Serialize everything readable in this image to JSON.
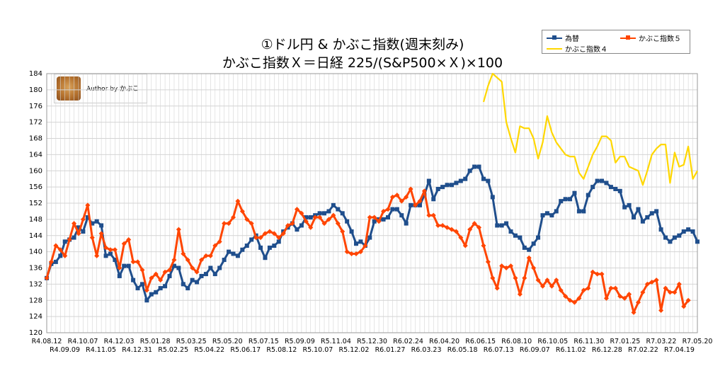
{
  "title_line1": "①ドル円 & かぶこ指数(週末刻み)",
  "title_line2": "かぶこ指数Ｘ＝日経 225/(S&P500×Ｘ)×100",
  "author_label": "Author by かぶこ",
  "colors": {
    "fx": "#1f4e8c",
    "k5": "#ff4500",
    "k4": "#ffd700",
    "grid": "#d4d4d4"
  },
  "chart_data": {
    "type": "line",
    "title": "①ドル円 & かぶこ指数(週末刻み) かぶこ指数Ｘ＝日経 225/(S&P500×Ｘ)×100",
    "ylim": [
      120,
      184
    ],
    "y_ticks": [
      120,
      124,
      128,
      132,
      136,
      140,
      144,
      148,
      152,
      156,
      160,
      164,
      168,
      172,
      176,
      180,
      184
    ],
    "grid": true,
    "legend_position": "top-right",
    "x_labels_top": [
      "R4.08.12",
      "R4.10.07",
      "R4.12.03",
      "R5.01.28",
      "R5.03.25",
      "R5.05.20",
      "R5.07.15",
      "R5.09.09",
      "R5.11.04",
      "R5.12.30",
      "R6.02.24",
      "R6.04.20",
      "R6.06.15",
      "R6.08.10",
      "R6.10.05",
      "R6.11.30",
      "R7.01.25",
      "R7.03.22",
      "R7.05.20"
    ],
    "x_labels_bottom": [
      "R4.09.09",
      "R4.11.05",
      "R4.12.31",
      "R5.02.25",
      "R5.04.22",
      "R5.06.17",
      "R5.08.12",
      "R5.10.07",
      "R5.12.02",
      "R6.01.27",
      "R6.03.23",
      "R6.05.18",
      "R6.07.13",
      "R6.09.07",
      "R6.11.02",
      "R6.12.28",
      "R7.02.22",
      "R7.04.19"
    ],
    "series": [
      {
        "name": "為替",
        "values": [
          133.5,
          137.0,
          137.5,
          139.0,
          142.5,
          143.0,
          143.5,
          146.0,
          145.0,
          148.5,
          147.0,
          147.5,
          146.5,
          139.0,
          139.5,
          138.0,
          134.0,
          136.5,
          136.5,
          133.0,
          131.0,
          132.0,
          128.0,
          129.5,
          130.0,
          131.0,
          131.5,
          134.0,
          136.5,
          136.0,
          132.0,
          131.0,
          133.0,
          132.5,
          134.0,
          134.5,
          136.0,
          134.5,
          136.0,
          138.0,
          140.0,
          139.5,
          139.0,
          140.5,
          141.5,
          143.0,
          144.0,
          141.0,
          138.5,
          141.0,
          141.5,
          142.5,
          145.0,
          146.0,
          147.0,
          145.5,
          146.5,
          148.5,
          148.5,
          149.0,
          149.5,
          149.5,
          150.0,
          151.5,
          150.5,
          149.5,
          147.5,
          145.0,
          142.0,
          142.5,
          141.5,
          143.5,
          147.5,
          148.0,
          148.0,
          148.5,
          150.5,
          150.5,
          149.0,
          147.0,
          151.5,
          151.5,
          151.5,
          154.0,
          157.5,
          153.0,
          155.5,
          156.0,
          156.5,
          156.5,
          157.0,
          157.5,
          158.0,
          160.0,
          161.0,
          161.0,
          158.0,
          157.5,
          153.5,
          146.5,
          146.5,
          147.0,
          145.0,
          144.0,
          143.5,
          141.0,
          140.5,
          142.0,
          143.5,
          149.0,
          149.5,
          149.0,
          150.0,
          152.5,
          153.0,
          153.0,
          154.5,
          150.0,
          150.0,
          154.0,
          156.0,
          157.5,
          157.5,
          157.0,
          156.0,
          155.5,
          155.0,
          151.0,
          151.5,
          148.5,
          150.5,
          147.5,
          148.5,
          149.5,
          150.0,
          145.5,
          143.5,
          142.5,
          143.5,
          144.0,
          145.0,
          145.5,
          145.0,
          142.5
        ]
      },
      {
        "name": "かぶこ指数５",
        "values": [
          133.5,
          137.5,
          141.5,
          140.5,
          139.0,
          143.0,
          147.0,
          144.5,
          148.0,
          151.5,
          143.5,
          139.0,
          144.5,
          141.0,
          140.5,
          140.5,
          136.0,
          142.0,
          143.0,
          137.5,
          137.5,
          135.5,
          130.5,
          133.5,
          134.5,
          133.0,
          135.0,
          135.5,
          138.0,
          145.5,
          139.5,
          138.0,
          136.0,
          135.0,
          138.0,
          139.0,
          139.0,
          141.5,
          142.5,
          147.0,
          147.0,
          148.5,
          152.5,
          150.0,
          148.0,
          147.0,
          143.5,
          143.5,
          144.5,
          145.0,
          144.5,
          143.5,
          144.5,
          146.5,
          147.0,
          150.5,
          149.5,
          147.5,
          146.0,
          148.5,
          148.5,
          147.0,
          148.0,
          149.0,
          147.0,
          145.0,
          140.0,
          139.5,
          139.5,
          140.0,
          141.5,
          148.5,
          148.5,
          147.5,
          150.0,
          150.5,
          153.5,
          154.0,
          152.5,
          153.5,
          155.5,
          151.5,
          152.5,
          155.0,
          149.0,
          149.0,
          146.5,
          146.5,
          146.0,
          145.5,
          145.0,
          143.5,
          141.5,
          145.5,
          147.0,
          146.0,
          141.5,
          137.5,
          133.5,
          131.0,
          136.5,
          136.0,
          136.5,
          133.5,
          129.5,
          133.5,
          138.5,
          136.0,
          133.0,
          131.5,
          133.0,
          131.5,
          133.0,
          130.5,
          129.0,
          128.0,
          127.5,
          128.5,
          130.5,
          131.0,
          135.0,
          134.5,
          134.5,
          128.5,
          131.0,
          131.0,
          129.0,
          128.5,
          129.5,
          125.0,
          127.5,
          130.0,
          132.0,
          132.5,
          133.0,
          125.5,
          131.0,
          130.0,
          130.0,
          132.0,
          126.5,
          128.0
        ]
      },
      {
        "name": "かぶこ指数４",
        "values": [
          177.0,
          181.0,
          184.0,
          183.0,
          182.0,
          172.0,
          168.0,
          164.5,
          171.0,
          170.5,
          170.5,
          168.0,
          163.0,
          167.0,
          173.5,
          169.5,
          167.0,
          165.5,
          164.0,
          163.5,
          163.5,
          159.5,
          158.0,
          161.0,
          164.0,
          166.0,
          168.5,
          168.5,
          167.5,
          162.0,
          163.5,
          163.5,
          161.0,
          160.5,
          160.0,
          156.5,
          160.0,
          164.0,
          165.5,
          166.5,
          166.5,
          157.0,
          164.5,
          161.0,
          161.5,
          166.0,
          158.0,
          160.0
        ]
      }
    ]
  }
}
